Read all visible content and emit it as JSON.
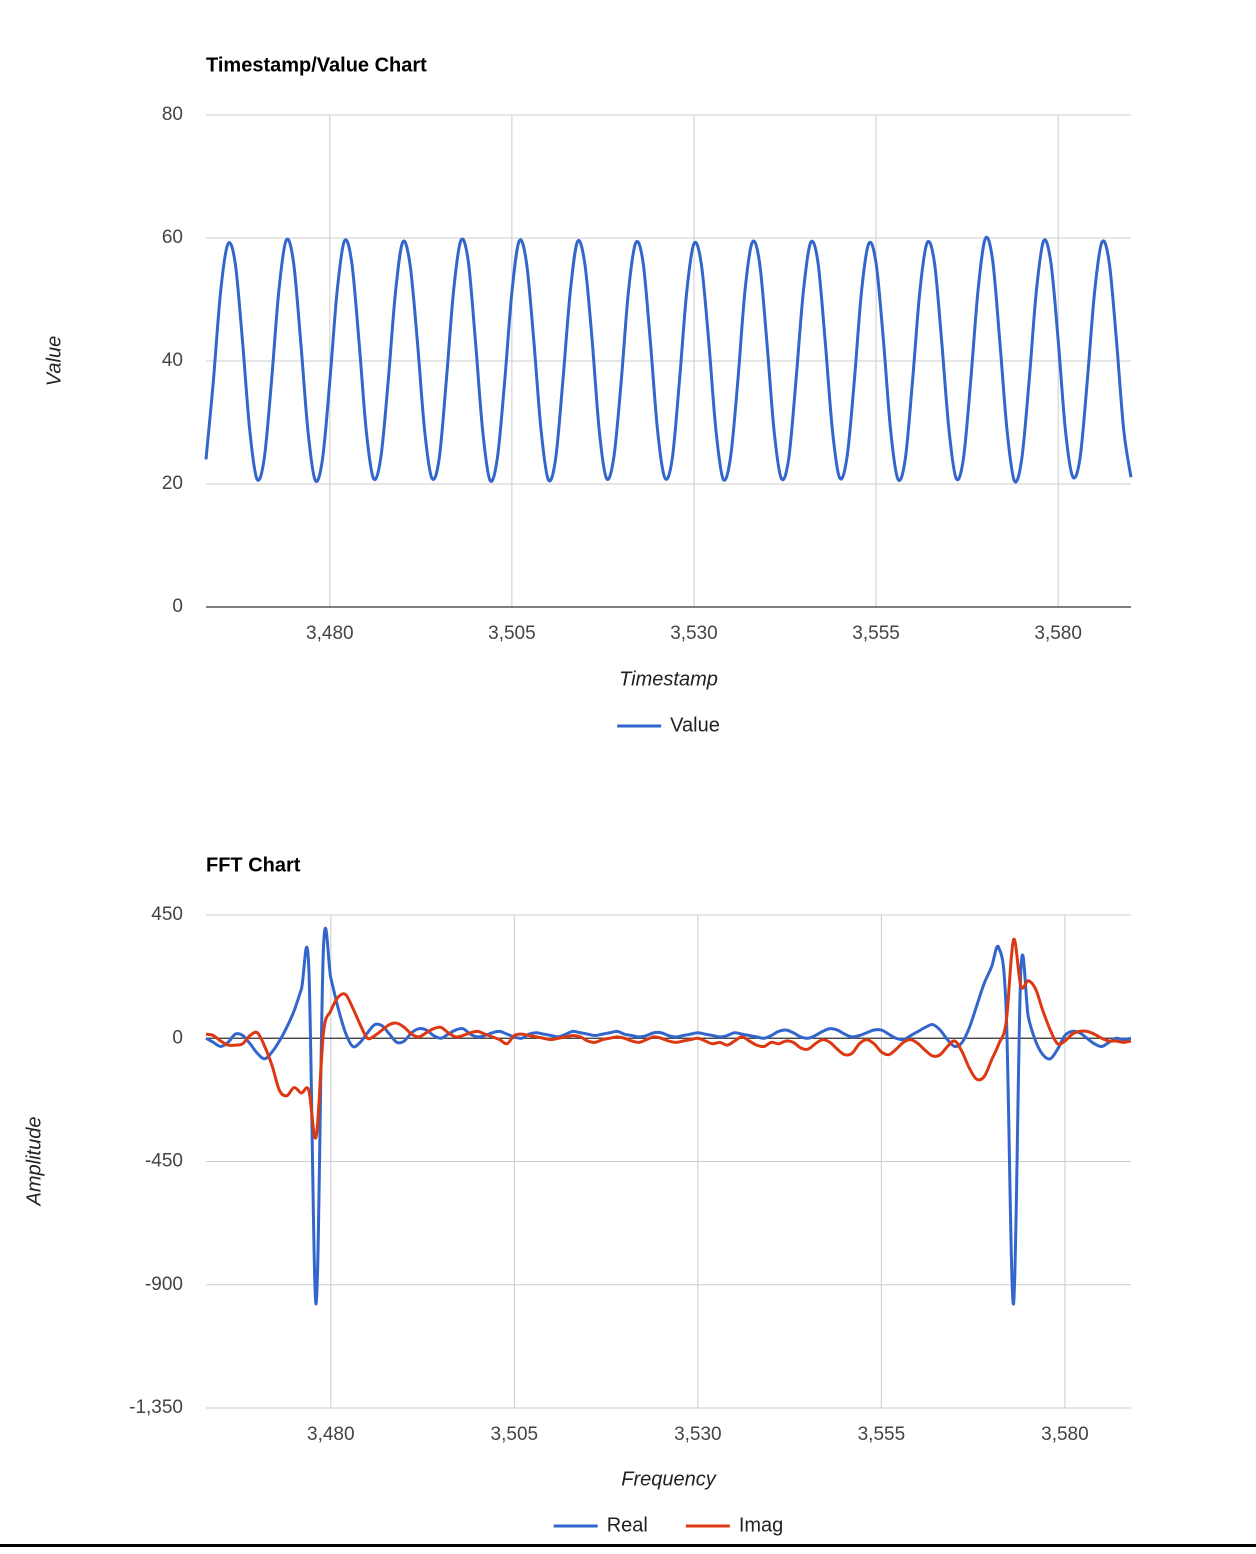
{
  "chart_data": [
    {
      "type": "line",
      "title": "Timestamp/Value Chart",
      "x_label": "Timestamp",
      "y_label": "Value",
      "x": [
        3463,
        3464,
        3465,
        3466,
        3467,
        3468,
        3469,
        3470,
        3471,
        3472,
        3473,
        3474,
        3475,
        3476,
        3477,
        3478,
        3479,
        3480,
        3481,
        3482,
        3483,
        3484,
        3485,
        3486,
        3487,
        3488,
        3489,
        3490,
        3491,
        3492,
        3493,
        3494,
        3495,
        3496,
        3497,
        3498,
        3499,
        3500,
        3501,
        3502,
        3503,
        3504,
        3505,
        3506,
        3507,
        3508,
        3509,
        3510,
        3511,
        3512,
        3513,
        3514,
        3515,
        3516,
        3517,
        3518,
        3519,
        3520,
        3521,
        3522,
        3523,
        3524,
        3525,
        3526,
        3527,
        3528,
        3529,
        3530,
        3531,
        3532,
        3533,
        3534,
        3535,
        3536,
        3537,
        3538,
        3539,
        3540,
        3541,
        3542,
        3543,
        3544,
        3545,
        3546,
        3547,
        3548,
        3549,
        3550,
        3551,
        3552,
        3553,
        3554,
        3555,
        3556,
        3557,
        3558,
        3559,
        3560,
        3561,
        3562,
        3563,
        3564,
        3565,
        3566,
        3567,
        3568,
        3569,
        3570,
        3571,
        3572,
        3573,
        3574,
        3575,
        3576,
        3577,
        3578,
        3579,
        3580,
        3581,
        3582,
        3583,
        3584,
        3585,
        3586,
        3587,
        3588,
        3589,
        3590
      ],
      "series": [
        {
          "name": "Value",
          "color": "#3366cc",
          "values": [
            24.0,
            36.6,
            51.2,
            59.0,
            56.0,
            43.4,
            28.8,
            20.8,
            24.2,
            36.8,
            51.4,
            59.6,
            56.2,
            43.2,
            28.6,
            20.6,
            24.1,
            36.7,
            51.3,
            59.5,
            56.1,
            43.3,
            28.7,
            20.9,
            24.3,
            36.5,
            51.0,
            59.3,
            55.8,
            43.5,
            28.9,
            21.0,
            24.0,
            36.9,
            51.5,
            59.6,
            56.3,
            43.1,
            28.5,
            20.6,
            24.2,
            36.6,
            51.2,
            59.5,
            56.0,
            43.4,
            28.8,
            20.7,
            24.1,
            36.8,
            51.1,
            59.4,
            55.9,
            43.6,
            28.6,
            20.9,
            24.4,
            36.6,
            51.3,
            59.2,
            56.1,
            43.3,
            28.7,
            21.0,
            24.0,
            36.7,
            51.2,
            59.1,
            55.8,
            43.5,
            28.9,
            20.8,
            24.2,
            36.5,
            51.4,
            59.3,
            56.0,
            43.2,
            28.6,
            20.9,
            24.1,
            36.8,
            51.1,
            59.2,
            56.2,
            43.4,
            28.8,
            21.0,
            24.3,
            36.6,
            51.3,
            59.1,
            55.9,
            43.5,
            28.7,
            20.8,
            24.0,
            36.7,
            51.2,
            59.2,
            56.1,
            43.3,
            28.9,
            20.9,
            24.2,
            36.9,
            51.5,
            59.9,
            56.4,
            43.0,
            28.5,
            20.5,
            24.1,
            36.6,
            51.3,
            59.5,
            56.0,
            43.4,
            28.7,
            21.2,
            24.2,
            36.8,
            51.2,
            59.3,
            56.1,
            43.4,
            28.8,
            21.1
          ]
        }
      ],
      "xlim": [
        3463,
        3590
      ],
      "ylim": [
        0,
        80
      ],
      "xticks": [
        {
          "value": 3480,
          "label": "3,480"
        },
        {
          "value": 3505,
          "label": "3,505"
        },
        {
          "value": 3530,
          "label": "3,530"
        },
        {
          "value": 3555,
          "label": "3,555"
        },
        {
          "value": 3580,
          "label": "3,580"
        }
      ],
      "yticks": [
        0,
        20,
        40,
        60,
        80
      ],
      "grid": true,
      "legend": "bottom"
    },
    {
      "type": "line",
      "title": "FFT Chart",
      "x_label": "Frequency",
      "y_label": "Amplitude",
      "x": [
        3463,
        3464,
        3465,
        3466,
        3467,
        3468,
        3469,
        3470,
        3471,
        3472,
        3473,
        3474,
        3475,
        3476,
        3477,
        3478,
        3479,
        3480,
        3481,
        3482,
        3483,
        3484,
        3485,
        3486,
        3487,
        3488,
        3489,
        3490,
        3491,
        3492,
        3493,
        3494,
        3495,
        3496,
        3497,
        3498,
        3499,
        3500,
        3501,
        3502,
        3503,
        3504,
        3505,
        3506,
        3507,
        3508,
        3509,
        3510,
        3511,
        3512,
        3513,
        3514,
        3515,
        3516,
        3517,
        3518,
        3519,
        3520,
        3521,
        3522,
        3523,
        3524,
        3525,
        3526,
        3527,
        3528,
        3529,
        3530,
        3531,
        3532,
        3533,
        3534,
        3535,
        3536,
        3537,
        3538,
        3539,
        3540,
        3541,
        3542,
        3543,
        3544,
        3545,
        3546,
        3547,
        3548,
        3549,
        3550,
        3551,
        3552,
        3553,
        3554,
        3555,
        3556,
        3557,
        3558,
        3559,
        3560,
        3561,
        3562,
        3563,
        3564,
        3565,
        3566,
        3567,
        3568,
        3569,
        3570,
        3571,
        3572,
        3573,
        3574,
        3575,
        3576,
        3577,
        3578,
        3579,
        3580,
        3581,
        3582,
        3583,
        3584,
        3585,
        3586,
        3587,
        3588,
        3589
      ],
      "series": [
        {
          "name": "Real",
          "color": "#3366cc",
          "values": [
            0,
            -15,
            -30,
            -15,
            15,
            10,
            -20,
            -55,
            -75,
            -50,
            -10,
            40,
            100,
            180,
            260,
            -970,
            330,
            220,
            110,
            20,
            -30,
            -15,
            20,
            50,
            45,
            15,
            -15,
            -10,
            20,
            35,
            30,
            10,
            0,
            15,
            30,
            35,
            15,
            5,
            10,
            20,
            25,
            15,
            5,
            0,
            15,
            20,
            15,
            10,
            5,
            15,
            25,
            20,
            15,
            10,
            15,
            20,
            25,
            15,
            10,
            5,
            10,
            20,
            20,
            10,
            5,
            10,
            15,
            20,
            15,
            10,
            5,
            10,
            20,
            15,
            10,
            5,
            0,
            10,
            25,
            30,
            20,
            5,
            0,
            10,
            25,
            35,
            30,
            15,
            5,
            10,
            20,
            30,
            30,
            15,
            0,
            -5,
            10,
            25,
            40,
            50,
            30,
            -5,
            -30,
            -15,
            40,
            120,
            200,
            260,
            330,
            100,
            -970,
            250,
            80,
            -10,
            -60,
            -75,
            -40,
            10,
            25,
            20,
            0,
            -20,
            -30,
            -15,
            0,
            -5,
            0
          ]
        },
        {
          "name": "Imag",
          "color": "#dc3912",
          "values": [
            15,
            10,
            -10,
            -25,
            -25,
            -20,
            10,
            20,
            -30,
            -100,
            -190,
            -210,
            -180,
            -200,
            -190,
            -360,
            20,
            100,
            150,
            160,
            110,
            50,
            0,
            10,
            30,
            50,
            55,
            40,
            15,
            5,
            20,
            35,
            40,
            20,
            5,
            10,
            20,
            25,
            15,
            5,
            -5,
            -20,
            10,
            15,
            10,
            5,
            0,
            -5,
            0,
            5,
            10,
            5,
            -10,
            -15,
            -5,
            0,
            5,
            0,
            -10,
            -15,
            -5,
            5,
            0,
            -10,
            -15,
            -10,
            -5,
            0,
            -10,
            -20,
            -15,
            -25,
            -10,
            5,
            -10,
            -25,
            -30,
            -15,
            -20,
            -10,
            -15,
            -35,
            -40,
            -20,
            -5,
            -15,
            -40,
            -60,
            -55,
            -20,
            -5,
            -20,
            -50,
            -60,
            -40,
            -15,
            -5,
            -20,
            -45,
            -65,
            -60,
            -30,
            -10,
            -50,
            -110,
            -150,
            -140,
            -80,
            -20,
            60,
            360,
            190,
            210,
            180,
            100,
            30,
            -20,
            -10,
            15,
            25,
            25,
            15,
            0,
            -10,
            -10,
            -15,
            -10
          ]
        }
      ],
      "xlim": [
        3463,
        3589
      ],
      "ylim": [
        -1350,
        450
      ],
      "xticks": [
        {
          "value": 3480,
          "label": "3,480"
        },
        {
          "value": 3505,
          "label": "3,505"
        },
        {
          "value": 3530,
          "label": "3,530"
        },
        {
          "value": 3555,
          "label": "3,555"
        },
        {
          "value": 3580,
          "label": "3,580"
        }
      ],
      "yticks": [
        450,
        0,
        -450,
        -900,
        {
          "value": -1350,
          "label": "-1,350"
        }
      ],
      "grid": true,
      "legend": "bottom"
    }
  ]
}
